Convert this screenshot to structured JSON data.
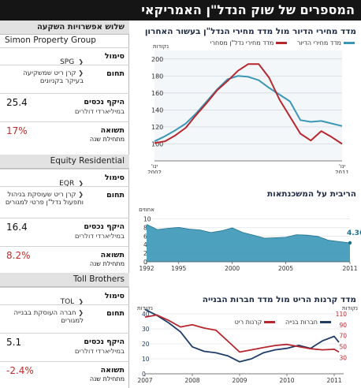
{
  "banner": {
    "title": "המספרים של שוק הנדל\"ן האמריקאי"
  },
  "stocks": {
    "header": "שלוש אפשרויות השקעה",
    "cards": [
      {
        "name": "Simon Property Group",
        "symbol_label": "סימול",
        "symbol": "SPG",
        "field_label": "תחום",
        "field": "קרן ריט שמשקיעה בעיקר בקניונים",
        "assets_label": "היקף נכסים",
        "assets": "25.4",
        "assets_unit": "במיליארדי דולרים",
        "return_label": "תשואה",
        "return_sub": "מתחילת שנה",
        "return": "17%"
      },
      {
        "name": "Equity Residential",
        "symbol_label": "סימול",
        "symbol": "EQR",
        "field_label": "תחום",
        "field": "קרן ריט שעוסקת בניהול ותפעול נדל\"ן פרטי למגורים",
        "assets_label": "היקף נכסים",
        "assets": "16.4",
        "assets_unit": "במיליארדי דולרים",
        "return_label": "תשואה",
        "return_sub": "מתחילת שנה",
        "return": "8.2%"
      },
      {
        "name": "Toll Brothers",
        "symbol_label": "סימול",
        "symbol": "TOL",
        "field_label": "תחום",
        "field": "חברה העוסקת בבנייה למגורים",
        "assets_label": "היקף נכסים",
        "assets": "5.1",
        "assets_unit": "במיליארדי דולרים",
        "return_label": "תשואה",
        "return_sub": "מתחילת שנה",
        "return": "-2.4%"
      }
    ]
  },
  "chart_data": [
    {
      "type": "line",
      "title": "מדד מחירי הדיור מול מדד מחירי הנדל\"ן בעשור האחרון",
      "ylabel": "נקודות",
      "ylim": [
        80,
        210
      ],
      "yticks": [
        100,
        120,
        140,
        160,
        180,
        200
      ],
      "x_start_label": "ינו' 2002",
      "x_end_label": "ינו' 2011",
      "x": [
        2002.0,
        2002.5,
        2003.0,
        2003.5,
        2004.0,
        2004.5,
        2005.0,
        2005.5,
        2006.0,
        2006.5,
        2007.0,
        2007.5,
        2008.0,
        2008.5,
        2009.0,
        2009.5,
        2010.0,
        2010.5,
        2011.0
      ],
      "series": [
        {
          "name": "מדד מחירי הדיור",
          "color": "#3a97b7",
          "values": [
            103,
            109,
            116,
            124,
            136,
            150,
            164,
            176,
            180,
            179,
            175,
            166,
            158,
            150,
            128,
            126,
            127,
            124,
            121
          ]
        },
        {
          "name": "מדד מחירי נדל\"ן מסחרי",
          "color": "#b8262e",
          "values": [
            101,
            103,
            110,
            119,
            134,
            148,
            163,
            174,
            186,
            194,
            194,
            178,
            152,
            132,
            112,
            104,
            115,
            108,
            100
          ]
        }
      ]
    },
    {
      "type": "area",
      "title": "הריבית על המשכנתאות",
      "ylabel": "אחוזים",
      "ylim": [
        0,
        11
      ],
      "yticks": [
        0,
        2,
        4,
        6,
        8,
        10
      ],
      "xticks": [
        1992,
        1995,
        2000,
        2005,
        2011
      ],
      "annotation": "4.36%",
      "x": [
        1992,
        1993,
        1994,
        1995,
        1996,
        1997,
        1998,
        1999,
        2000,
        2001,
        2002,
        2003,
        2004,
        2005,
        2006,
        2007,
        2008,
        2009,
        2010,
        2011
      ],
      "series": [
        {
          "name": "",
          "color": "#3a97b7",
          "values": [
            8.7,
            7.5,
            7.8,
            8.0,
            7.6,
            7.4,
            6.8,
            7.2,
            7.9,
            6.8,
            6.2,
            5.5,
            5.6,
            5.7,
            6.3,
            6.2,
            5.9,
            5.0,
            4.7,
            4.4
          ]
        }
      ]
    },
    {
      "type": "line",
      "title": "מדד קרנות הריט מול מדד חברות הבנייה",
      "ylabel_left": "נקודות",
      "ylabel_right": "נקודות",
      "ylim_left": [
        0,
        40
      ],
      "yticks_left": [
        0,
        10,
        20,
        30,
        40
      ],
      "ylim_right": [
        0,
        110
      ],
      "yticks_right": [
        30,
        50,
        70,
        90,
        110
      ],
      "xticks": [
        2007,
        2008,
        2009,
        2010,
        2011
      ],
      "x": [
        2007.0,
        2007.25,
        2007.5,
        2007.75,
        2008.0,
        2008.25,
        2008.5,
        2008.75,
        2009.0,
        2009.25,
        2009.5,
        2009.75,
        2010.0,
        2010.25,
        2010.5,
        2010.75,
        2011.0,
        2011.1
      ],
      "series": [
        {
          "name": "חברות בנייה",
          "color": "#1f3d66",
          "axis": "left",
          "values": [
            43,
            39,
            34,
            28,
            18,
            15,
            14,
            12,
            8,
            10,
            14,
            16,
            17,
            19,
            17,
            22,
            25,
            21
          ]
        },
        {
          "name": "קרנות ריט",
          "color": "#b8262e",
          "axis": "right",
          "values": [
            104,
            108,
            98,
            86,
            90,
            84,
            80,
            60,
            40,
            44,
            48,
            52,
            54,
            50,
            46,
            44,
            45,
            40
          ]
        }
      ]
    }
  ]
}
